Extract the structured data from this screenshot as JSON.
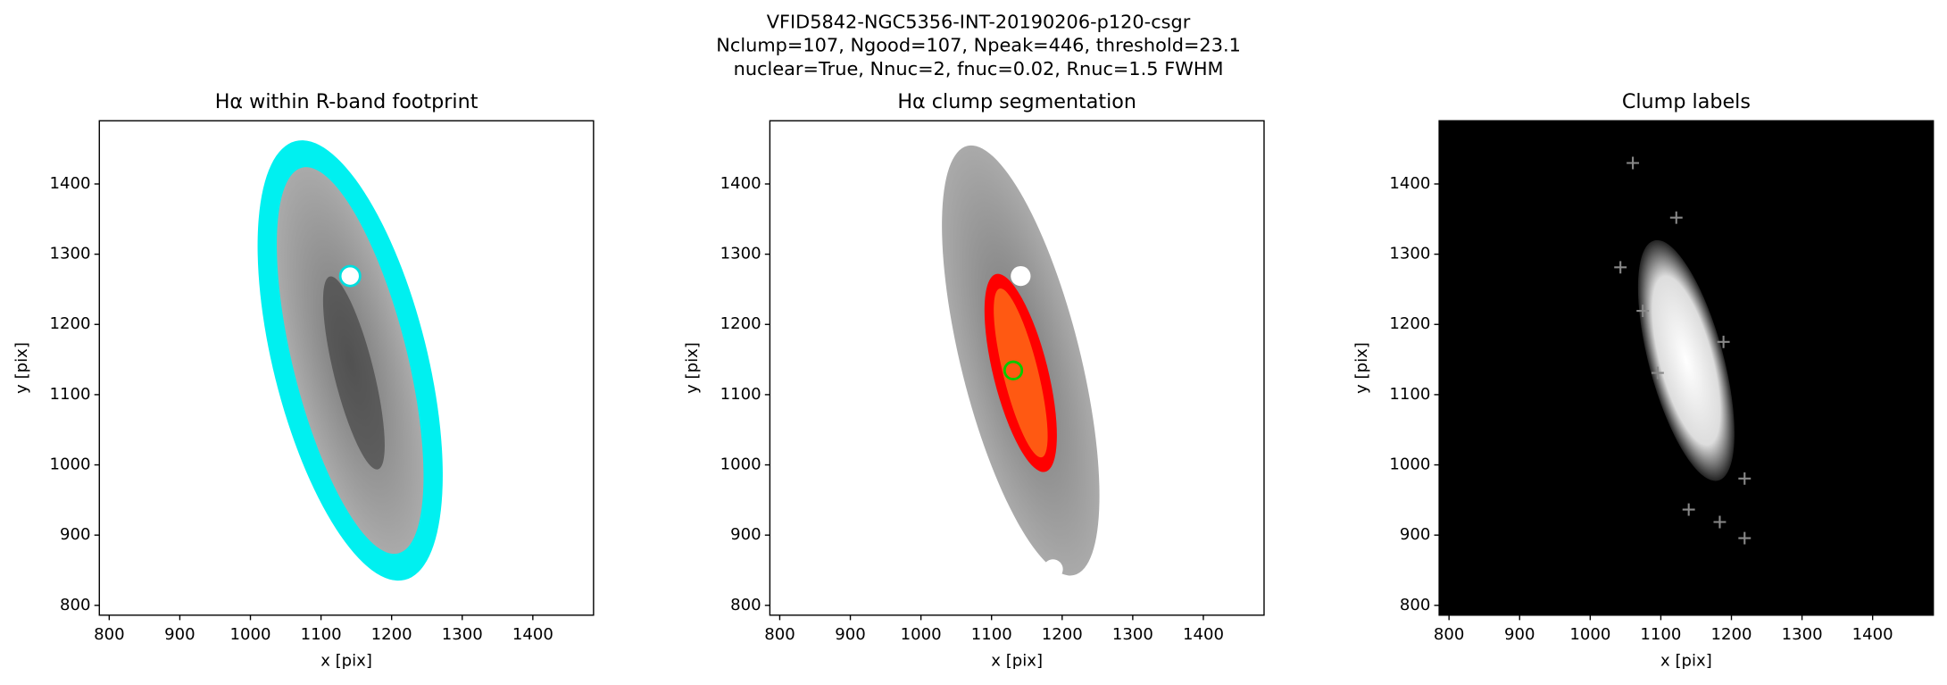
{
  "figure_title": [
    "VFID5842-NGC5356-INT-20190206-p120-csgr",
    "Nclump=107, Ngood=107, Npeak=446, threshold=23.1",
    "nuclear=True, Nnuc=2, fnuc=0.02, Rnuc=1.5 FWHM"
  ],
  "chart_data": [
    {
      "type": "image",
      "title": "Hα within R-band footprint",
      "xlabel": "x [pix]",
      "ylabel": "y [pix]",
      "xlim": [
        786,
        1486
      ],
      "ylim": [
        786,
        1490
      ],
      "xticks": [
        800,
        900,
        1000,
        1100,
        1200,
        1300,
        1400
      ],
      "yticks": [
        800,
        900,
        1000,
        1100,
        1200,
        1300,
        1400
      ]
    },
    {
      "type": "image",
      "title": "Hα clump segmentation",
      "xlabel": "x [pix]",
      "ylabel": "y [pix]",
      "xlim": [
        786,
        1486
      ],
      "ylim": [
        786,
        1490
      ],
      "xticks": [
        800,
        900,
        1000,
        1100,
        1200,
        1300,
        1400
      ],
      "yticks": [
        800,
        900,
        1000,
        1100,
        1200,
        1300,
        1400
      ]
    },
    {
      "type": "image",
      "title": "Clump labels",
      "xlabel": "x [pix]",
      "ylabel": "y [pix]",
      "xlim": [
        786,
        1486
      ],
      "ylim": [
        786,
        1490
      ],
      "xticks": [
        800,
        900,
        1000,
        1100,
        1200,
        1300,
        1400
      ],
      "yticks": [
        800,
        900,
        1000,
        1100,
        1200,
        1300,
        1400
      ]
    }
  ]
}
